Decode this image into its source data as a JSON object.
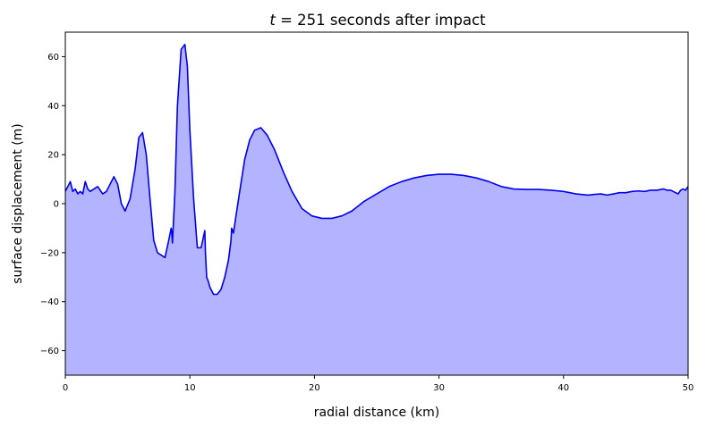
{
  "chart_data": {
    "type": "area",
    "title_prefix": "t",
    "title_suffix": " = 251 seconds after impact",
    "xlabel": "radial distance (km)",
    "ylabel": "surface displacement (m)",
    "xlim": [
      0,
      50
    ],
    "ylim": [
      -70,
      70
    ],
    "xticks": [
      0,
      10,
      20,
      30,
      40,
      50
    ],
    "yticks": [
      60,
      40,
      20,
      0,
      -20,
      -40,
      -60
    ],
    "xtick_labels": [
      "0",
      "10",
      "20",
      "30",
      "40",
      "50"
    ],
    "ytick_labels": [
      "60",
      "40",
      "20",
      "0",
      "−20",
      "−40",
      "−60"
    ],
    "grid": false,
    "line_color": "#0000ee",
    "fill_color": "#b3b3ff",
    "series": [
      {
        "x": [
          0,
          0.2,
          0.4,
          0.6,
          0.8,
          1.0,
          1.2,
          1.4,
          1.6,
          1.8,
          2.0,
          2.3,
          2.6,
          3.0,
          3.3,
          3.6,
          3.9,
          4.2,
          4.5,
          4.8,
          5.2,
          5.6,
          5.9,
          6.2,
          6.5,
          6.8,
          7.1,
          7.4,
          7.7,
          8.0,
          8.3,
          8.5,
          8.55,
          8.6,
          8.8,
          9.0,
          9.3,
          9.6,
          9.8,
          10.0,
          10.3,
          10.6,
          10.9,
          11.2,
          11.25,
          11.35,
          11.5,
          11.6,
          11.9,
          12.2,
          12.5,
          12.8,
          13.1,
          13.3,
          13.35,
          13.5,
          13.7,
          14.0,
          14.4,
          14.8,
          15.2,
          15.7,
          16.2,
          16.8,
          17.5,
          18.2,
          19.0,
          19.8,
          20.6,
          21.4,
          22.2,
          23.0,
          24.0,
          25.0,
          26.0,
          27.0,
          28.0,
          29.0,
          30.0,
          31.0,
          32.0,
          33.0,
          34.0,
          35.0,
          36.0,
          37.0,
          38.0,
          39.0,
          40.0,
          41.0,
          42.0,
          42.5,
          43.0,
          43.5,
          44.0,
          44.5,
          45.0,
          45.5,
          46.0,
          46.5,
          47.0,
          47.5,
          48.0,
          48.3,
          48.6,
          49.0,
          49.2,
          49.4,
          49.6,
          49.8,
          50.0
        ],
        "y": [
          5,
          7,
          9,
          5,
          6,
          4,
          5,
          4,
          9,
          6,
          5,
          6,
          7,
          4,
          5,
          8,
          11,
          8,
          0,
          -3,
          2,
          14,
          27,
          29,
          20,
          2,
          -15,
          -20,
          -21,
          -22,
          -15,
          -10,
          -12,
          -16,
          5,
          40,
          63,
          65,
          56,
          30,
          2,
          -18,
          -18,
          -11,
          -20,
          -30,
          -32,
          -34,
          -37,
          -37,
          -35,
          -30,
          -23,
          -15,
          -10,
          -12,
          -5,
          5,
          18,
          26,
          30,
          31,
          28,
          22,
          13,
          5,
          -2,
          -5,
          -6,
          -6,
          -5,
          -3,
          1,
          4,
          7,
          9,
          10.5,
          11.5,
          12,
          12,
          11.5,
          10.5,
          9,
          7,
          6,
          5.8,
          5.8,
          5.5,
          5,
          4,
          3.5,
          3.8,
          4,
          3.5,
          4,
          4.5,
          4.5,
          5,
          5.2,
          5,
          5.5,
          5.5,
          6,
          5.5,
          5.5,
          4.5,
          4,
          5.5,
          6,
          5.5,
          7
        ]
      }
    ]
  }
}
